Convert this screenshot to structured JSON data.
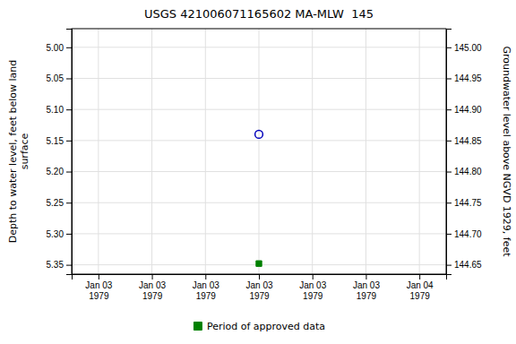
{
  "chart_data": {
    "type": "scatter",
    "title": "USGS 421006071165602 MA-MLW  145",
    "y_label": "Depth to water level, feet below land\n surface",
    "y2_label": "Groundwater level above NGVD 1929, feet",
    "categories": [
      "Jan 03\n1979",
      "Jan 03\n1979",
      "Jan 03\n1979",
      "Jan 03\n1979",
      "Jan 03\n1979",
      "Jan 03\n1979",
      "Jan 04\n1979"
    ],
    "series": [
      {
        "color": "#0000bb",
        "marker": "circle-open",
        "values": [
          null,
          null,
          null,
          5.14,
          null,
          null,
          null
        ]
      },
      {
        "name": "Period of approved data",
        "color": "#008000",
        "marker": "square",
        "values": [
          null,
          null,
          null,
          5.348,
          null,
          null,
          null
        ]
      }
    ],
    "ylim": [
      5.365,
      4.97
    ],
    "yticks": [
      {
        "value": 5.0,
        "label": "5.00"
      },
      5.05,
      {
        "value": 5.1,
        "label": "5.10"
      },
      5.15,
      {
        "value": 5.2,
        "label": "5.20"
      },
      5.25,
      {
        "value": 5.3,
        "label": "5.30"
      },
      5.35
    ],
    "y2lim": [
      144.635,
      145.03
    ],
    "y2ticks": [
      {
        "value": 145.0,
        "label": "145.00"
      },
      144.95,
      {
        "value": 144.9,
        "label": "144.90"
      },
      144.85,
      {
        "value": 144.8,
        "label": "144.80"
      },
      144.75,
      {
        "value": 144.7,
        "label": "144.70"
      },
      144.65
    ],
    "grid": true,
    "legend": "bottom"
  }
}
